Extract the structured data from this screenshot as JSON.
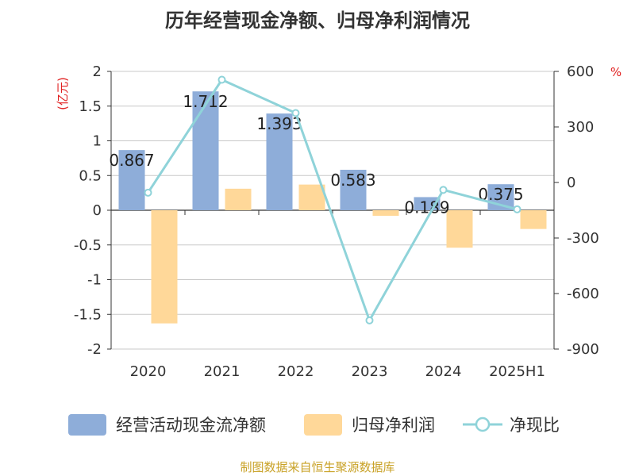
{
  "chart_data": {
    "type": "bar",
    "title": "历年经营现金净额、归母净利润情况",
    "categories": [
      "2020",
      "2021",
      "2022",
      "2023",
      "2024",
      "2025H1"
    ],
    "series": [
      {
        "name": "经营活动现金流净额",
        "type": "bar",
        "axis": "left",
        "color": "#8eadd9",
        "values": [
          0.867,
          1.712,
          1.393,
          0.583,
          0.189,
          0.375
        ]
      },
      {
        "name": "归母净利润",
        "type": "bar",
        "axis": "left",
        "color": "#ffd899",
        "values": [
          -1.63,
          0.31,
          0.37,
          -0.08,
          -0.54,
          -0.27
        ]
      },
      {
        "name": "净现比",
        "type": "line",
        "axis": "right",
        "color": "#8fd3d9",
        "values": [
          -55,
          555,
          375,
          -745,
          -40,
          -145
        ]
      }
    ],
    "data_labels": [
      "0.867",
      "1.712",
      "1.393",
      "0.583",
      "0.189",
      "0.375"
    ],
    "left_axis": {
      "unit": "(亿元)",
      "ylim": [
        -2,
        2
      ],
      "ticks": [
        "2",
        "1.5",
        "1",
        "0.5",
        "0",
        "-0.5",
        "-1",
        "-1.5",
        "-2"
      ]
    },
    "right_axis": {
      "unit": "%",
      "ylim": [
        -900,
        600
      ],
      "ticks": [
        "600",
        "300",
        "0",
        "-300",
        "-600",
        "-900"
      ]
    },
    "grid": true,
    "legend_position": "bottom"
  },
  "source": "制图数据来自恒生聚源数据库"
}
